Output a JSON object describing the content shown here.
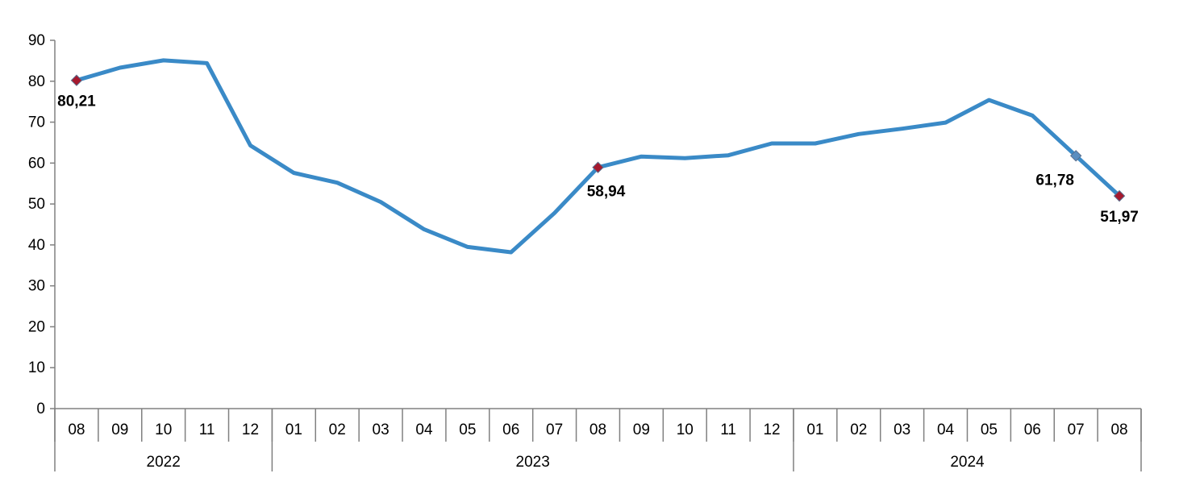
{
  "chart_data": {
    "type": "line",
    "title": "",
    "xlabel": "",
    "ylabel": "",
    "ylim": [
      0,
      90
    ],
    "yticks": [
      0,
      10,
      20,
      30,
      40,
      50,
      60,
      70,
      80,
      90
    ],
    "grid": false,
    "legend": "none",
    "categories": [
      "08",
      "09",
      "10",
      "11",
      "12",
      "01",
      "02",
      "03",
      "04",
      "05",
      "06",
      "07",
      "08",
      "09",
      "10",
      "11",
      "12",
      "01",
      "02",
      "03",
      "04",
      "05",
      "06",
      "07",
      "08"
    ],
    "year_groups": [
      {
        "label": "2022",
        "count": 5
      },
      {
        "label": "2023",
        "count": 12
      },
      {
        "label": "2024",
        "count": 8
      }
    ],
    "series": [
      {
        "color": "#3a8ac7",
        "values": [
          80.21,
          83.3,
          85.1,
          84.4,
          64.3,
          57.6,
          55.2,
          50.5,
          43.8,
          39.5,
          38.2,
          47.8,
          58.94,
          61.6,
          61.2,
          61.9,
          64.8,
          64.8,
          67.1,
          68.4,
          69.9,
          75.4,
          71.6,
          61.78,
          51.97
        ]
      }
    ],
    "annotations": [
      {
        "index": 0,
        "text": "80,21",
        "marker_color": "#a6192e"
      },
      {
        "index": 12,
        "text": "58,94",
        "marker_color": "#a6192e"
      },
      {
        "index": 23,
        "text": "61,78",
        "marker_color": "#5a8ec0"
      },
      {
        "index": 24,
        "text": "51,97",
        "marker_color": "#a6192e"
      }
    ]
  }
}
